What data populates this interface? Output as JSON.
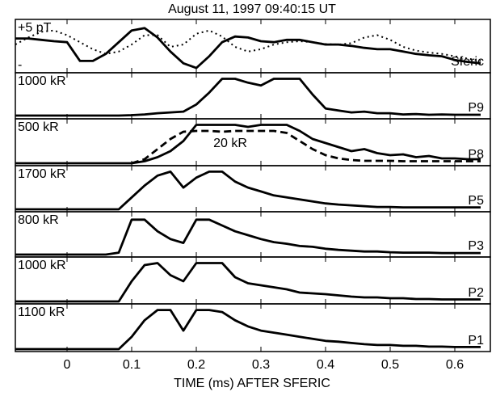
{
  "chart_data": [
    {
      "type": "line",
      "title": "August 11, 1997  09:40:15 UT",
      "annotations": [
        "+5 pT",
        "-"
      ],
      "xlim": [
        -0.08,
        0.655
      ],
      "ylim": [
        0,
        1
      ],
      "x": [
        -0.08,
        -0.06,
        -0.04,
        -0.02,
        0,
        0.02,
        0.04,
        0.06,
        0.08,
        0.1,
        0.12,
        0.14,
        0.16,
        0.18,
        0.2,
        0.22,
        0.24,
        0.26,
        0.28,
        0.3,
        0.32,
        0.34,
        0.36,
        0.38,
        0.4,
        0.42,
        0.44,
        0.46,
        0.48,
        0.5,
        0.52,
        0.54,
        0.56,
        0.58,
        0.6,
        0.62,
        0.64
      ],
      "series": [
        {
          "name": "Sferic",
          "color": "#000000",
          "style": "solid",
          "values": [
            0.68,
            0.68,
            0.65,
            0.62,
            0.6,
            0.2,
            0.2,
            0.35,
            0.6,
            0.85,
            0.9,
            0.7,
            0.4,
            0.15,
            0.05,
            0.3,
            0.6,
            0.72,
            0.7,
            0.62,
            0.6,
            0.65,
            0.65,
            0.6,
            0.55,
            0.55,
            0.52,
            0.48,
            0.45,
            0.45,
            0.4,
            0.35,
            0.32,
            0.3,
            0.22,
            0.18,
            0.15
          ]
        },
        {
          "color": "#000000",
          "style": "dotted",
          "values": [
            0.55,
            0.7,
            0.82,
            0.85,
            0.75,
            0.6,
            0.45,
            0.35,
            0.4,
            0.55,
            0.75,
            0.75,
            0.5,
            0.55,
            0.78,
            0.85,
            0.72,
            0.5,
            0.4,
            0.45,
            0.55,
            0.6,
            0.62,
            0.6,
            0.56,
            0.55,
            0.58,
            0.7,
            0.75,
            0.65,
            0.5,
            0.42,
            0.38,
            0.35,
            0.3,
            0.25,
            0.2
          ]
        }
      ]
    },
    {
      "type": "line",
      "annotations": [
        "1000 kR"
      ],
      "xlim": [
        -0.08,
        0.655
      ],
      "ylim": [
        0,
        1
      ],
      "x": [
        -0.08,
        -0.06,
        -0.04,
        -0.02,
        0,
        0.02,
        0.04,
        0.06,
        0.08,
        0.1,
        0.12,
        0.14,
        0.16,
        0.18,
        0.2,
        0.22,
        0.24,
        0.26,
        0.28,
        0.3,
        0.32,
        0.34,
        0.36,
        0.38,
        0.4,
        0.42,
        0.44,
        0.46,
        0.48,
        0.5,
        0.52,
        0.54,
        0.56,
        0.58,
        0.6,
        0.62,
        0.64
      ],
      "series": [
        {
          "name": "P9",
          "color": "#000000",
          "style": "solid",
          "values": [
            0.02,
            0.02,
            0.02,
            0.02,
            0.02,
            0.02,
            0.02,
            0.02,
            0.02,
            0.03,
            0.05,
            0.08,
            0.1,
            0.12,
            0.3,
            0.6,
            0.95,
            0.95,
            0.85,
            0.78,
            0.95,
            0.95,
            0.95,
            0.55,
            0.2,
            0.15,
            0.1,
            0.12,
            0.08,
            0.08,
            0.05,
            0.06,
            0.04,
            0.05,
            0.04,
            0.04,
            0.04
          ]
        }
      ]
    },
    {
      "type": "line",
      "annotations": [
        "500 kR",
        "20 kR"
      ],
      "xlim": [
        -0.08,
        0.655
      ],
      "ylim": [
        0,
        1
      ],
      "x": [
        -0.08,
        -0.06,
        -0.04,
        -0.02,
        0,
        0.02,
        0.04,
        0.06,
        0.08,
        0.1,
        0.12,
        0.14,
        0.16,
        0.18,
        0.2,
        0.22,
        0.24,
        0.26,
        0.28,
        0.3,
        0.32,
        0.34,
        0.36,
        0.38,
        0.4,
        0.42,
        0.44,
        0.46,
        0.48,
        0.5,
        0.52,
        0.54,
        0.56,
        0.58,
        0.6,
        0.62,
        0.64
      ],
      "series": [
        {
          "name": "P8",
          "color": "#000000",
          "style": "solid",
          "values": [
            0,
            0,
            0,
            0,
            0,
            0,
            0,
            0,
            0,
            0,
            0.05,
            0.15,
            0.3,
            0.55,
            0.95,
            0.95,
            0.95,
            0.95,
            0.9,
            0.95,
            0.95,
            0.95,
            0.8,
            0.6,
            0.5,
            0.4,
            0.3,
            0.35,
            0.25,
            0.2,
            0.22,
            0.15,
            0.18,
            0.12,
            0.12,
            0.1,
            0.1
          ]
        },
        {
          "color": "#000000",
          "style": "dashed",
          "values": [
            null,
            null,
            null,
            null,
            null,
            null,
            null,
            null,
            null,
            0,
            0.1,
            0.35,
            0.6,
            0.78,
            0.8,
            0.8,
            0.78,
            0.8,
            0.8,
            0.8,
            0.8,
            0.75,
            0.55,
            0.35,
            0.2,
            0.12,
            0.08,
            0.06,
            0.06,
            0.06,
            0.05,
            0.05,
            0.05,
            0.05,
            0.05,
            0.05,
            0.05
          ]
        }
      ]
    },
    {
      "type": "line",
      "annotations": [
        "1700 kR"
      ],
      "xlim": [
        -0.08,
        0.655
      ],
      "ylim": [
        0,
        1
      ],
      "x": [
        -0.08,
        -0.06,
        -0.04,
        -0.02,
        0,
        0.02,
        0.04,
        0.06,
        0.08,
        0.1,
        0.12,
        0.14,
        0.16,
        0.18,
        0.2,
        0.22,
        0.24,
        0.26,
        0.28,
        0.3,
        0.32,
        0.34,
        0.36,
        0.38,
        0.4,
        0.42,
        0.44,
        0.46,
        0.48,
        0.5,
        0.52,
        0.54,
        0.56,
        0.58,
        0.6,
        0.62,
        0.64
      ],
      "series": [
        {
          "name": "P5",
          "color": "#000000",
          "style": "solid",
          "values": [
            0,
            0,
            0,
            0,
            0,
            0,
            0,
            0,
            0,
            0.3,
            0.6,
            0.85,
            0.95,
            0.55,
            0.8,
            0.95,
            0.95,
            0.7,
            0.55,
            0.45,
            0.35,
            0.3,
            0.25,
            0.2,
            0.15,
            0.12,
            0.1,
            0.08,
            0.06,
            0.06,
            0.05,
            0.05,
            0.05,
            0.05,
            0.05,
            0.05,
            0.05
          ]
        }
      ]
    },
    {
      "type": "line",
      "annotations": [
        "800 kR"
      ],
      "xlim": [
        -0.08,
        0.655
      ],
      "ylim": [
        0,
        1
      ],
      "x": [
        -0.08,
        -0.06,
        -0.04,
        -0.02,
        0,
        0.02,
        0.04,
        0.06,
        0.08,
        0.1,
        0.12,
        0.14,
        0.16,
        0.18,
        0.2,
        0.22,
        0.24,
        0.26,
        0.28,
        0.3,
        0.32,
        0.34,
        0.36,
        0.38,
        0.4,
        0.42,
        0.44,
        0.46,
        0.48,
        0.5,
        0.52,
        0.54,
        0.56,
        0.58,
        0.6,
        0.62,
        0.64
      ],
      "series": [
        {
          "name": "P3",
          "color": "#000000",
          "style": "solid",
          "values": [
            0,
            0,
            0,
            0,
            0,
            0,
            0,
            0,
            0.05,
            0.9,
            0.9,
            0.6,
            0.4,
            0.3,
            0.9,
            0.9,
            0.75,
            0.6,
            0.5,
            0.4,
            0.32,
            0.28,
            0.22,
            0.2,
            0.15,
            0.12,
            0.1,
            0.08,
            0.08,
            0.06,
            0.05,
            0.05,
            0.05,
            0.04,
            0.04,
            0.04,
            0.04
          ]
        }
      ]
    },
    {
      "type": "line",
      "annotations": [
        "1000 kR"
      ],
      "xlim": [
        -0.08,
        0.655
      ],
      "ylim": [
        0,
        1
      ],
      "x": [
        -0.08,
        -0.06,
        -0.04,
        -0.02,
        0,
        0.02,
        0.04,
        0.06,
        0.08,
        0.1,
        0.12,
        0.14,
        0.16,
        0.18,
        0.2,
        0.22,
        0.24,
        0.26,
        0.28,
        0.3,
        0.32,
        0.34,
        0.36,
        0.38,
        0.4,
        0.42,
        0.44,
        0.46,
        0.48,
        0.5,
        0.52,
        0.54,
        0.56,
        0.58,
        0.6,
        0.62,
        0.64
      ],
      "series": [
        {
          "name": "P2",
          "color": "#000000",
          "style": "solid",
          "values": [
            0,
            0,
            0,
            0,
            0,
            0,
            0,
            0,
            0,
            0.5,
            0.9,
            0.95,
            0.65,
            0.5,
            0.95,
            0.95,
            0.95,
            0.6,
            0.45,
            0.4,
            0.35,
            0.3,
            0.22,
            0.2,
            0.18,
            0.15,
            0.12,
            0.1,
            0.1,
            0.08,
            0.08,
            0.06,
            0.06,
            0.05,
            0.05,
            0.05,
            0.05
          ]
        }
      ]
    },
    {
      "type": "line",
      "annotations": [
        "1100 kR"
      ],
      "xlabel": "TIME (ms) AFTER SFERIC",
      "xlim": [
        -0.08,
        0.655
      ],
      "ylim": [
        0,
        1
      ],
      "xticks": [
        0,
        0.1,
        0.2,
        0.3,
        0.4,
        0.5,
        0.6
      ],
      "x": [
        -0.08,
        -0.06,
        -0.04,
        -0.02,
        0,
        0.02,
        0.04,
        0.06,
        0.08,
        0.1,
        0.12,
        0.14,
        0.16,
        0.18,
        0.2,
        0.22,
        0.24,
        0.26,
        0.28,
        0.3,
        0.32,
        0.34,
        0.36,
        0.38,
        0.4,
        0.42,
        0.44,
        0.46,
        0.48,
        0.5,
        0.52,
        0.54,
        0.56,
        0.58,
        0.6,
        0.62,
        0.64
      ],
      "series": [
        {
          "name": "P1",
          "color": "#000000",
          "style": "solid",
          "values": [
            0,
            0,
            0,
            0,
            0,
            0,
            0,
            0,
            0,
            0.3,
            0.7,
            0.95,
            0.95,
            0.45,
            0.95,
            0.95,
            0.9,
            0.7,
            0.55,
            0.45,
            0.4,
            0.35,
            0.3,
            0.25,
            0.2,
            0.18,
            0.15,
            0.12,
            0.1,
            0.1,
            0.08,
            0.08,
            0.06,
            0.06,
            0.05,
            0.05,
            0.05
          ]
        }
      ]
    }
  ]
}
